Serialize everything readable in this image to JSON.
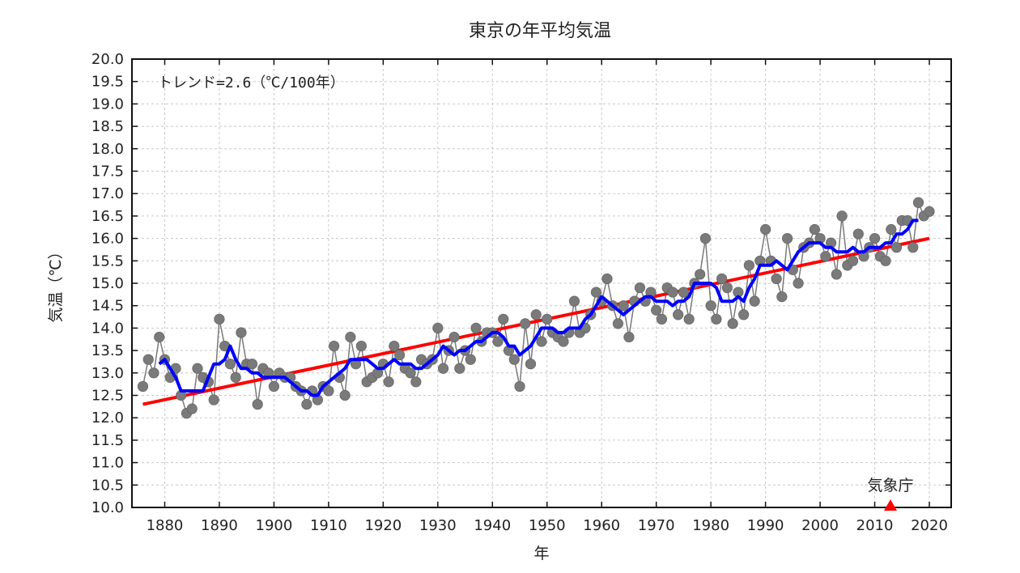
{
  "chart_data": {
    "type": "line",
    "title": "東京の年平均気温",
    "xlabel": "年",
    "ylabel": "気温（℃）",
    "xlim": [
      1874,
      2024
    ],
    "ylim": [
      10.0,
      20.0
    ],
    "x_ticks": [
      1880,
      1890,
      1900,
      1910,
      1920,
      1930,
      1940,
      1950,
      1960,
      1970,
      1980,
      1990,
      2000,
      2010,
      2020
    ],
    "y_ticks": [
      "10.0",
      "10.5",
      "11.0",
      "11.5",
      "12.0",
      "12.5",
      "13.0",
      "13.5",
      "14.0",
      "14.5",
      "15.0",
      "15.5",
      "16.0",
      "16.5",
      "17.0",
      "17.5",
      "18.0",
      "18.5",
      "19.0",
      "19.5",
      "20.0"
    ],
    "grid": true,
    "annotation": "トレンド=2.6（℃/100年）",
    "credit": "気象庁",
    "colors": {
      "annual": "#7a7a7a",
      "moving_average": "#0000ff",
      "trend": "#ff0000",
      "credit_marker": "#ff0000"
    },
    "series": [
      {
        "values": [
          [
            1876,
            12.7
          ],
          [
            1877,
            13.3
          ],
          [
            1878,
            13.0
          ],
          [
            1879,
            13.8
          ],
          [
            1880,
            13.3
          ],
          [
            1881,
            12.9
          ],
          [
            1882,
            13.1
          ],
          [
            1883,
            12.5
          ],
          [
            1884,
            12.1
          ],
          [
            1885,
            12.2
          ],
          [
            1886,
            13.1
          ],
          [
            1887,
            12.9
          ],
          [
            1888,
            12.8
          ],
          [
            1889,
            12.4
          ],
          [
            1890,
            14.2
          ],
          [
            1891,
            13.6
          ],
          [
            1892,
            13.2
          ],
          [
            1893,
            12.9
          ],
          [
            1894,
            13.9
          ],
          [
            1895,
            13.2
          ],
          [
            1896,
            13.2
          ],
          [
            1897,
            12.3
          ],
          [
            1898,
            13.1
          ],
          [
            1899,
            13.0
          ],
          [
            1900,
            12.7
          ],
          [
            1901,
            13.0
          ],
          [
            1902,
            12.9
          ],
          [
            1903,
            12.9
          ],
          [
            1904,
            12.7
          ],
          [
            1905,
            12.6
          ],
          [
            1906,
            12.3
          ],
          [
            1907,
            12.6
          ],
          [
            1908,
            12.4
          ],
          [
            1909,
            12.7
          ],
          [
            1910,
            12.6
          ],
          [
            1911,
            13.6
          ],
          [
            1912,
            12.9
          ],
          [
            1913,
            12.5
          ],
          [
            1914,
            13.8
          ],
          [
            1915,
            13.2
          ],
          [
            1916,
            13.6
          ],
          [
            1917,
            12.8
          ],
          [
            1918,
            12.9
          ],
          [
            1919,
            13.0
          ],
          [
            1920,
            13.2
          ],
          [
            1921,
            12.8
          ],
          [
            1922,
            13.6
          ],
          [
            1923,
            13.4
          ],
          [
            1924,
            13.1
          ],
          [
            1925,
            13.0
          ],
          [
            1926,
            12.8
          ],
          [
            1927,
            13.3
          ],
          [
            1928,
            13.2
          ],
          [
            1929,
            13.3
          ],
          [
            1930,
            14.0
          ],
          [
            1931,
            13.1
          ],
          [
            1932,
            13.5
          ],
          [
            1933,
            13.8
          ],
          [
            1934,
            13.1
          ],
          [
            1935,
            13.5
          ],
          [
            1936,
            13.3
          ],
          [
            1937,
            14.0
          ],
          [
            1938,
            13.7
          ],
          [
            1939,
            13.9
          ],
          [
            1940,
            13.9
          ],
          [
            1941,
            13.7
          ],
          [
            1942,
            14.2
          ],
          [
            1943,
            13.5
          ],
          [
            1944,
            13.3
          ],
          [
            1945,
            12.7
          ],
          [
            1946,
            14.1
          ],
          [
            1947,
            13.2
          ],
          [
            1948,
            14.3
          ],
          [
            1949,
            13.7
          ],
          [
            1950,
            14.2
          ],
          [
            1951,
            13.9
          ],
          [
            1952,
            13.8
          ],
          [
            1953,
            13.7
          ],
          [
            1954,
            13.9
          ],
          [
            1955,
            14.6
          ],
          [
            1956,
            13.9
          ],
          [
            1957,
            14.0
          ],
          [
            1958,
            14.3
          ],
          [
            1959,
            14.8
          ],
          [
            1960,
            14.6
          ],
          [
            1961,
            15.1
          ],
          [
            1962,
            14.5
          ],
          [
            1963,
            14.1
          ],
          [
            1964,
            14.5
          ],
          [
            1965,
            13.8
          ],
          [
            1966,
            14.6
          ],
          [
            1967,
            14.9
          ],
          [
            1968,
            14.6
          ],
          [
            1969,
            14.8
          ],
          [
            1970,
            14.4
          ],
          [
            1971,
            14.2
          ],
          [
            1972,
            14.9
          ],
          [
            1973,
            14.8
          ],
          [
            1974,
            14.3
          ],
          [
            1975,
            14.8
          ],
          [
            1976,
            14.2
          ],
          [
            1977,
            15.0
          ],
          [
            1978,
            15.2
          ],
          [
            1979,
            16.0
          ],
          [
            1980,
            14.5
          ],
          [
            1981,
            14.2
          ],
          [
            1982,
            15.1
          ],
          [
            1983,
            14.9
          ],
          [
            1984,
            14.1
          ],
          [
            1985,
            14.8
          ],
          [
            1986,
            14.3
          ],
          [
            1987,
            15.4
          ],
          [
            1988,
            14.6
          ],
          [
            1989,
            15.5
          ],
          [
            1990,
            16.2
          ],
          [
            1991,
            15.5
          ],
          [
            1992,
            15.1
          ],
          [
            1993,
            14.7
          ],
          [
            1994,
            16.0
          ],
          [
            1995,
            15.3
          ],
          [
            1996,
            15.0
          ],
          [
            1997,
            15.8
          ],
          [
            1998,
            15.9
          ],
          [
            1999,
            16.2
          ],
          [
            2000,
            16.0
          ],
          [
            2001,
            15.6
          ],
          [
            2002,
            15.9
          ],
          [
            2003,
            15.2
          ],
          [
            2004,
            16.5
          ],
          [
            2005,
            15.4
          ],
          [
            2006,
            15.5
          ],
          [
            2007,
            16.1
          ],
          [
            2008,
            15.6
          ],
          [
            2009,
            15.8
          ],
          [
            2010,
            16.0
          ],
          [
            2011,
            15.6
          ],
          [
            2012,
            15.5
          ],
          [
            2013,
            16.2
          ],
          [
            2014,
            15.8
          ],
          [
            2015,
            16.4
          ],
          [
            2016,
            16.4
          ],
          [
            2017,
            15.8
          ],
          [
            2018,
            16.8
          ],
          [
            2019,
            16.5
          ],
          [
            2020,
            16.6
          ]
        ]
      },
      {
        "values": [
          [
            1879,
            13.2
          ],
          [
            1880,
            13.3
          ],
          [
            1881,
            13.1
          ],
          [
            1882,
            12.9
          ],
          [
            1883,
            12.6
          ],
          [
            1884,
            12.6
          ],
          [
            1885,
            12.6
          ],
          [
            1886,
            12.6
          ],
          [
            1887,
            12.6
          ],
          [
            1888,
            12.9
          ],
          [
            1889,
            13.2
          ],
          [
            1890,
            13.2
          ],
          [
            1891,
            13.3
          ],
          [
            1892,
            13.6
          ],
          [
            1893,
            13.3
          ],
          [
            1894,
            13.1
          ],
          [
            1895,
            13.1
          ],
          [
            1896,
            13.0
          ],
          [
            1897,
            13.0
          ],
          [
            1898,
            12.9
          ],
          [
            1899,
            12.9
          ],
          [
            1900,
            12.9
          ],
          [
            1901,
            12.9
          ],
          [
            1902,
            12.9
          ],
          [
            1903,
            12.8
          ],
          [
            1904,
            12.7
          ],
          [
            1905,
            12.6
          ],
          [
            1906,
            12.6
          ],
          [
            1907,
            12.5
          ],
          [
            1908,
            12.5
          ],
          [
            1909,
            12.7
          ],
          [
            1910,
            12.8
          ],
          [
            1911,
            12.9
          ],
          [
            1912,
            13.0
          ],
          [
            1913,
            13.1
          ],
          [
            1914,
            13.3
          ],
          [
            1915,
            13.3
          ],
          [
            1916,
            13.3
          ],
          [
            1917,
            13.3
          ],
          [
            1918,
            13.2
          ],
          [
            1919,
            13.1
          ],
          [
            1920,
            13.1
          ],
          [
            1921,
            13.2
          ],
          [
            1922,
            13.3
          ],
          [
            1923,
            13.2
          ],
          [
            1924,
            13.2
          ],
          [
            1925,
            13.2
          ],
          [
            1926,
            13.1
          ],
          [
            1927,
            13.1
          ],
          [
            1928,
            13.2
          ],
          [
            1929,
            13.3
          ],
          [
            1930,
            13.4
          ],
          [
            1931,
            13.6
          ],
          [
            1932,
            13.5
          ],
          [
            1933,
            13.4
          ],
          [
            1934,
            13.5
          ],
          [
            1935,
            13.5
          ],
          [
            1936,
            13.6
          ],
          [
            1937,
            13.7
          ],
          [
            1938,
            13.7
          ],
          [
            1939,
            13.8
          ],
          [
            1940,
            13.9
          ],
          [
            1941,
            13.9
          ],
          [
            1942,
            13.8
          ],
          [
            1943,
            13.6
          ],
          [
            1944,
            13.6
          ],
          [
            1945,
            13.4
          ],
          [
            1946,
            13.5
          ],
          [
            1947,
            13.6
          ],
          [
            1948,
            13.8
          ],
          [
            1949,
            14.0
          ],
          [
            1950,
            14.0
          ],
          [
            1951,
            14.0
          ],
          [
            1952,
            13.9
          ],
          [
            1953,
            13.9
          ],
          [
            1954,
            14.0
          ],
          [
            1955,
            14.0
          ],
          [
            1956,
            14.0
          ],
          [
            1957,
            14.2
          ],
          [
            1958,
            14.3
          ],
          [
            1959,
            14.5
          ],
          [
            1960,
            14.7
          ],
          [
            1961,
            14.6
          ],
          [
            1962,
            14.5
          ],
          [
            1963,
            14.4
          ],
          [
            1964,
            14.3
          ],
          [
            1965,
            14.4
          ],
          [
            1966,
            14.5
          ],
          [
            1967,
            14.6
          ],
          [
            1968,
            14.7
          ],
          [
            1969,
            14.7
          ],
          [
            1970,
            14.6
          ],
          [
            1971,
            14.6
          ],
          [
            1972,
            14.6
          ],
          [
            1973,
            14.5
          ],
          [
            1974,
            14.6
          ],
          [
            1975,
            14.6
          ],
          [
            1976,
            14.7
          ],
          [
            1977,
            15.0
          ],
          [
            1978,
            15.0
          ],
          [
            1979,
            15.0
          ],
          [
            1980,
            15.0
          ],
          [
            1981,
            14.9
          ],
          [
            1982,
            14.6
          ],
          [
            1983,
            14.6
          ],
          [
            1984,
            14.6
          ],
          [
            1985,
            14.7
          ],
          [
            1986,
            14.6
          ],
          [
            1987,
            14.9
          ],
          [
            1988,
            15.1
          ],
          [
            1989,
            15.4
          ],
          [
            1990,
            15.4
          ],
          [
            1991,
            15.4
          ],
          [
            1992,
            15.5
          ],
          [
            1993,
            15.4
          ],
          [
            1994,
            15.3
          ],
          [
            1995,
            15.5
          ],
          [
            1996,
            15.7
          ],
          [
            1997,
            15.8
          ],
          [
            1998,
            15.9
          ],
          [
            1999,
            15.9
          ],
          [
            2000,
            15.9
          ],
          [
            2001,
            15.8
          ],
          [
            2002,
            15.8
          ],
          [
            2003,
            15.7
          ],
          [
            2004,
            15.7
          ],
          [
            2005,
            15.7
          ],
          [
            2006,
            15.8
          ],
          [
            2007,
            15.7
          ],
          [
            2008,
            15.7
          ],
          [
            2009,
            15.8
          ],
          [
            2010,
            15.8
          ],
          [
            2011,
            15.8
          ],
          [
            2012,
            15.9
          ],
          [
            2013,
            15.9
          ],
          [
            2014,
            16.1
          ],
          [
            2015,
            16.1
          ],
          [
            2016,
            16.2
          ],
          [
            2017,
            16.4
          ],
          [
            2018,
            16.4
          ]
        ]
      },
      {
        "values": [
          [
            1876,
            12.3
          ],
          [
            2020,
            16.0
          ]
        ]
      }
    ]
  }
}
